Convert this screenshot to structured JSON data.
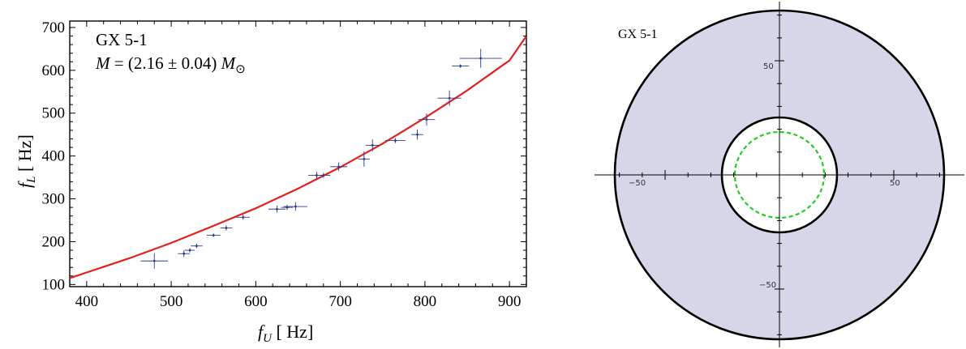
{
  "chart_data": [
    {
      "type": "scatter",
      "annotation": {
        "source": "GX 5-1",
        "mass_symbol": "M",
        "mass_eq": " = (2.16 ± 0.04) ",
        "mass_unit": "M",
        "mass_unit_sub": "⊙"
      },
      "xlabel": {
        "var": "f",
        "sub": "U",
        "unit": "  [ Hz]"
      },
      "ylabel": {
        "var": "f",
        "sub": "L",
        "unit": " [ Hz]"
      },
      "xlim": [
        380,
        920
      ],
      "ylim": [
        95,
        715
      ],
      "xticks": [
        "400",
        "500",
        "600",
        "700",
        "800",
        "900"
      ],
      "yticks": [
        "100",
        "200",
        "300",
        "400",
        "500",
        "600",
        "700"
      ],
      "points": [
        {
          "x": 480,
          "y": 155,
          "ex": 16,
          "ey": 18
        },
        {
          "x": 515,
          "y": 172,
          "ex": 7,
          "ey": 8
        },
        {
          "x": 522,
          "y": 180,
          "ex": 6,
          "ey": 5
        },
        {
          "x": 530,
          "y": 190,
          "ex": 7,
          "ey": 5
        },
        {
          "x": 550,
          "y": 215,
          "ex": 8,
          "ey": 4
        },
        {
          "x": 565,
          "y": 232,
          "ex": 7,
          "ey": 6
        },
        {
          "x": 585,
          "y": 257,
          "ex": 8,
          "ey": 6
        },
        {
          "x": 625,
          "y": 276,
          "ex": 10,
          "ey": 8
        },
        {
          "x": 637,
          "y": 280,
          "ex": 7,
          "ey": 6
        },
        {
          "x": 647,
          "y": 282,
          "ex": 14,
          "ey": 10
        },
        {
          "x": 672,
          "y": 355,
          "ex": 10,
          "ey": 8
        },
        {
          "x": 680,
          "y": 355,
          "ex": 8,
          "ey": 6
        },
        {
          "x": 698,
          "y": 375,
          "ex": 10,
          "ey": 10
        },
        {
          "x": 728,
          "y": 393,
          "ex": 7,
          "ey": 18
        },
        {
          "x": 738,
          "y": 425,
          "ex": 8,
          "ey": 14
        },
        {
          "x": 765,
          "y": 436,
          "ex": 12,
          "ey": 6
        },
        {
          "x": 791,
          "y": 450,
          "ex": 7,
          "ey": 12
        },
        {
          "x": 802,
          "y": 485,
          "ex": 10,
          "ey": 14
        },
        {
          "x": 829,
          "y": 535,
          "ex": 14,
          "ey": 18
        },
        {
          "x": 842,
          "y": 610,
          "ex": 10,
          "ey": 4
        },
        {
          "x": 866,
          "y": 628,
          "ex": 25,
          "ey": 22
        }
      ],
      "fit_curve": {
        "x": [
          380,
          400,
          450,
          500,
          550,
          600,
          650,
          700,
          750,
          800,
          850,
          900,
          920
        ],
        "y": [
          115,
          128,
          161,
          197,
          237,
          278,
          324,
          374,
          429,
          489,
          553,
          623,
          680
        ]
      },
      "colors": {
        "points": "#2b3b8f",
        "curve": "#e3211c"
      }
    },
    {
      "type": "diagram",
      "title": "GX 5-1",
      "xticks": [
        "−50",
        "50"
      ],
      "yticks": [
        "50",
        "−50"
      ],
      "outer_radius": 72,
      "inner_radius": 25,
      "dashed_radius": 19,
      "colors": {
        "fill": "#d6d6e9",
        "dashed": "#22cc22",
        "stroke": "#000000"
      }
    }
  ]
}
